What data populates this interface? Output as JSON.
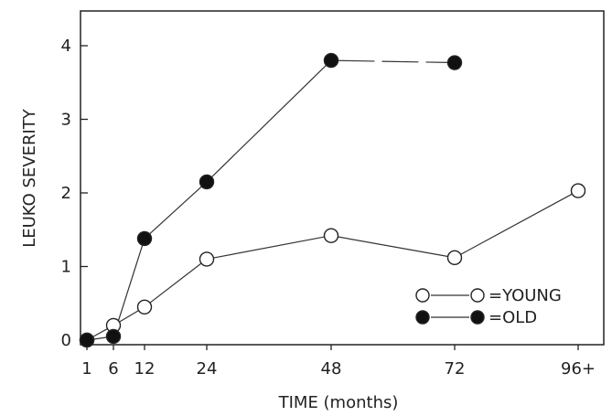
{
  "chart_data": {
    "type": "line",
    "xlabel": "TIME (months)",
    "ylabel": "LEUKO SEVERITY",
    "x_ticks": [
      "1",
      "6",
      "12",
      "24",
      "48",
      "72",
      "96+"
    ],
    "y_ticks": [
      "0",
      "1",
      "2",
      "3",
      "4"
    ],
    "ylim": [
      0,
      4.4
    ],
    "grid": false,
    "legend_position": "bottom-right",
    "series": [
      {
        "name": "YOUNG",
        "legend_label": "=YOUNG",
        "marker": "open-circle",
        "x": [
          "1",
          "6",
          "12",
          "24",
          "48",
          "72",
          "96+"
        ],
        "values": [
          0,
          0.2,
          0.45,
          1.1,
          1.42,
          1.12,
          2.03
        ]
      },
      {
        "name": "OLD",
        "legend_label": "=OLD",
        "marker": "filled-circle",
        "x": [
          "1",
          "6",
          "12",
          "24",
          "48",
          "72"
        ],
        "values": [
          0,
          0.05,
          1.38,
          2.15,
          3.8,
          3.77
        ],
        "gap_after_index": 4
      }
    ]
  }
}
